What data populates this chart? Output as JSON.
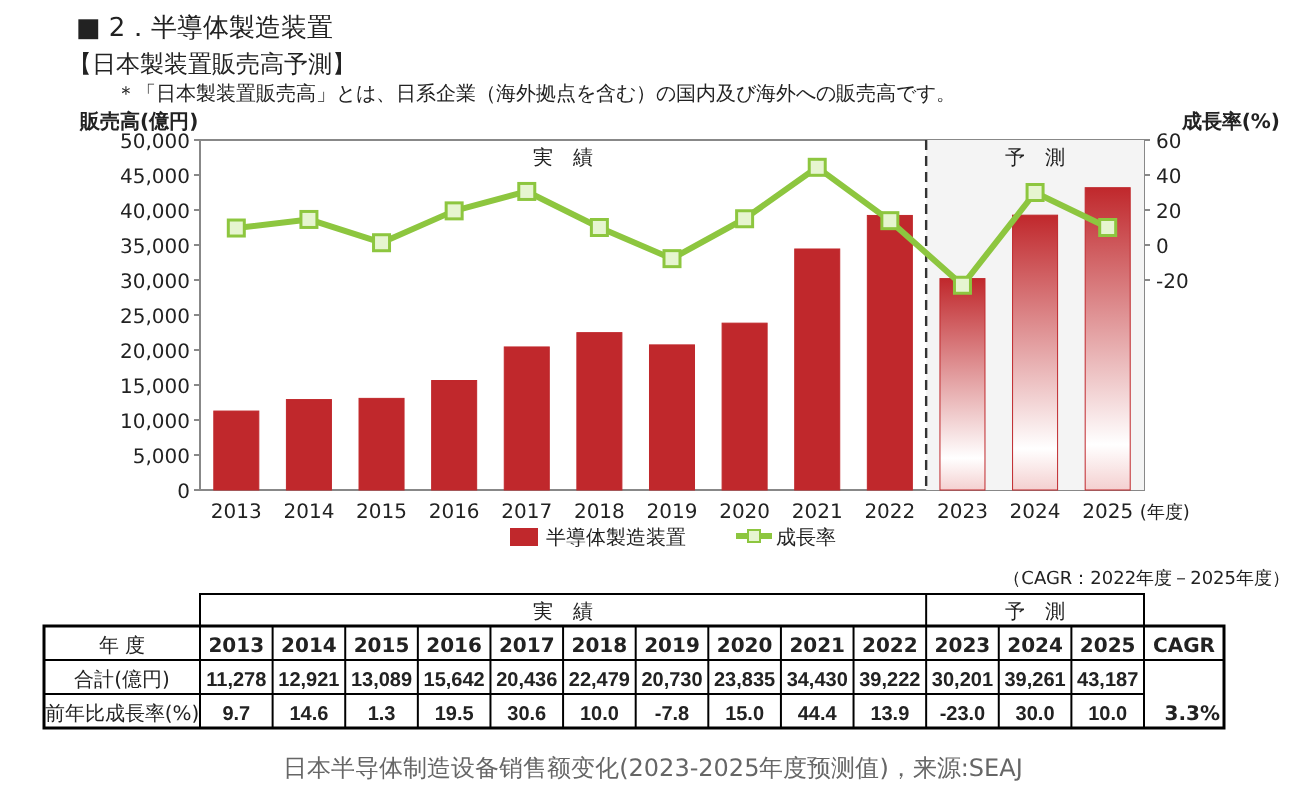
{
  "chart_data": {
    "type": "bar",
    "title": "■ 2．半導体製造装置",
    "subtitle": "【日本製装置販売高予測】",
    "ylabel": "販売高(億円)",
    "y2label": "成長率(%)",
    "xlabel": "(年度)",
    "categories": [
      "2013",
      "2014",
      "2015",
      "2016",
      "2017",
      "2018",
      "2019",
      "2020",
      "2021",
      "2022",
      "2023",
      "2024",
      "2025"
    ],
    "series": [
      {
        "name": "半導体製造装置",
        "color": "#c0282c",
        "values": [
          11278,
          12921,
          13089,
          15642,
          20436,
          22479,
          20730,
          23835,
          34430,
          39222,
          30201,
          39261,
          43187
        ],
        "value_labels": [
          "11,278",
          "12,921",
          "13,089",
          "15,642",
          "20,436",
          "22,479",
          "20,730",
          "23,835",
          "34,430",
          "39,222",
          "30,201",
          "39,261",
          "43,187"
        ]
      },
      {
        "name": "成長率",
        "type": "line",
        "axis": "y2",
        "color": "#8dc63f",
        "marker": "square",
        "line_style": "solid",
        "values": [
          9.7,
          14.6,
          1.3,
          19.5,
          30.6,
          10.0,
          -7.8,
          15.0,
          44.4,
          13.9,
          -23.0,
          30.0,
          10.0
        ],
        "value_labels": [
          "9.7",
          "14.6",
          "1.3",
          "19.5",
          "30.6",
          "10.0",
          "-7.8",
          "15.0",
          "44.4",
          "13.9",
          "-23.0",
          "30.0",
          "10.0"
        ]
      }
    ],
    "ylim": [
      0,
      50000
    ],
    "yticks": [
      {
        "value": 0,
        "label": "0"
      },
      {
        "value": 5000,
        "label": "5,000"
      },
      {
        "value": 10000,
        "label": "10,000"
      },
      {
        "value": 15000,
        "label": "15,000"
      },
      {
        "value": 20000,
        "label": "20,000"
      },
      {
        "value": 25000,
        "label": "25,000"
      },
      {
        "value": 30000,
        "label": "30,000"
      },
      {
        "value": 35000,
        "label": "35,000"
      },
      {
        "value": 40000,
        "label": "40,000"
      },
      {
        "value": 45000,
        "label": "45,000"
      },
      {
        "value": 50000,
        "label": "50,000"
      }
    ],
    "y2lim": [
      -140,
      60
    ],
    "y2ticks": [
      60,
      40,
      20,
      0,
      -20
    ],
    "bands": [
      {
        "axis": "x",
        "from": "2023",
        "to": "2025",
        "label": "予　測",
        "color": "#f4f4f4"
      }
    ],
    "grid": false,
    "legend": "bottom",
    "annotations": [
      "＊「日本製装置販売高」とは、日系企業（海外拠点を含む）の国内及び海外への販売高です。",
      "実　績",
      "（CAGR：2022年度－2025年度）",
      "実　績",
      "予　測",
      "年 度",
      "合計(億円)",
      "前年比成長率(%)",
      "CAGR",
      "3.3%",
      "日本半导体制造设备销售额变化(2023-2025年度预测值)，来源:SEAJ"
    ]
  }
}
